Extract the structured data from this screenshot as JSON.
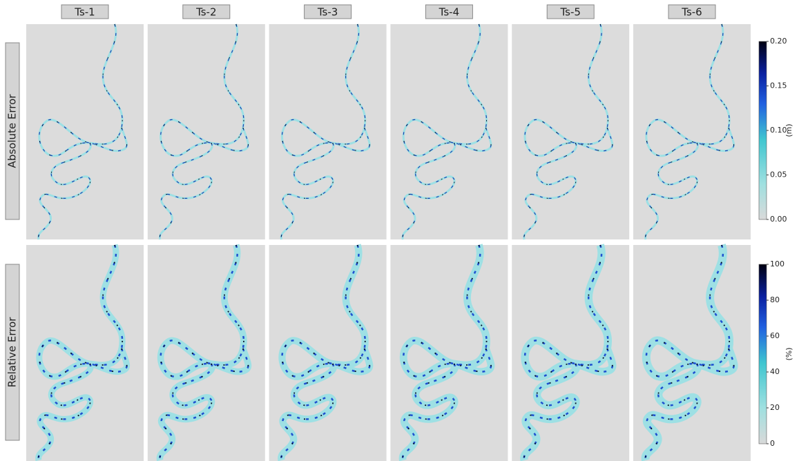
{
  "columns": [
    "Ts-1",
    "Ts-2",
    "Ts-3",
    "Ts-4",
    "Ts-5",
    "Ts-6"
  ],
  "rows": [
    {
      "label": "Absolute Error",
      "colorbar": {
        "unit": "(m)",
        "lim": [
          0,
          0.2
        ],
        "ticks": [
          {
            "value": 0,
            "label": "0.00"
          },
          {
            "value": 0.05,
            "label": "0.05"
          },
          {
            "value": 0.1,
            "label": "0.10"
          },
          {
            "value": 0.15,
            "label": "0.15"
          },
          {
            "value": 0.2,
            "label": "0.20"
          }
        ]
      }
    },
    {
      "label": "Relative Error",
      "colorbar": {
        "unit": "(%)",
        "lim": [
          0,
          100
        ],
        "ticks": [
          0,
          20,
          40,
          60,
          80,
          100
        ]
      }
    }
  ]
}
